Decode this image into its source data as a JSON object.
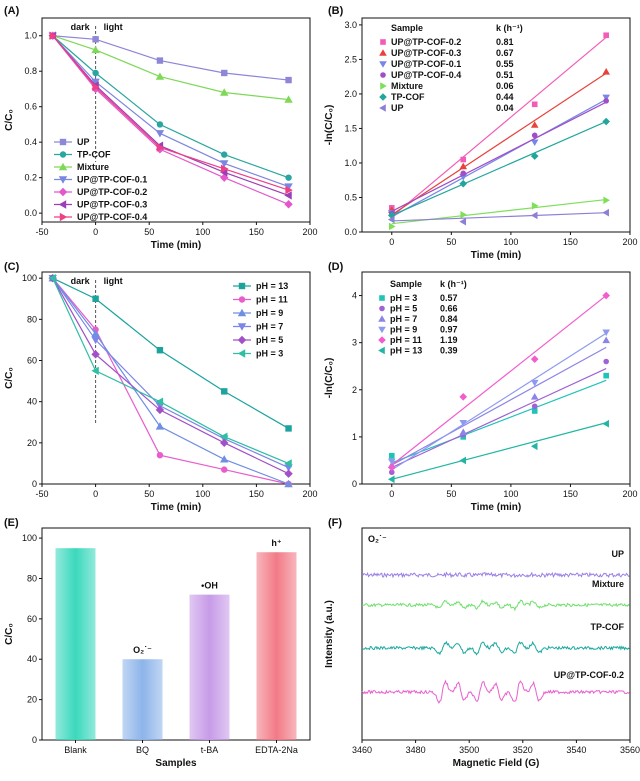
{
  "chart_data": [
    {
      "panel": "(A)",
      "type": "line",
      "xlabel": "Time (min)",
      "ylabel": "C/C₀",
      "xlim": [
        -50,
        200
      ],
      "ylim": [
        -0.05,
        1.1
      ],
      "xticks": [
        "-50",
        "0",
        "50",
        "100",
        "150",
        "200"
      ],
      "yticks": [
        "0.0",
        "0.2",
        "0.4",
        "0.6",
        "0.8",
        "1.0"
      ],
      "annotations": [
        "dark",
        "light"
      ],
      "x": [
        -40,
        0,
        60,
        120,
        180
      ],
      "series": [
        {
          "name": "UP",
          "color": "#8e86d6",
          "marker": "square",
          "values": [
            1.0,
            0.98,
            0.86,
            0.79,
            0.75
          ]
        },
        {
          "name": "TP-COF",
          "color": "#2aa6a0",
          "marker": "circle",
          "values": [
            1.0,
            0.79,
            0.5,
            0.33,
            0.2
          ]
        },
        {
          "name": "Mixture",
          "color": "#7ed957",
          "marker": "triangle-up",
          "values": [
            1.0,
            0.92,
            0.77,
            0.68,
            0.64
          ]
        },
        {
          "name": "UP@TP-COF-0.1",
          "color": "#7b86e0",
          "marker": "triangle-down",
          "values": [
            1.0,
            0.74,
            0.45,
            0.28,
            0.15
          ]
        },
        {
          "name": "UP@TP-COF-0.2",
          "color": "#e457cc",
          "marker": "diamond",
          "values": [
            1.0,
            0.7,
            0.36,
            0.2,
            0.05
          ]
        },
        {
          "name": "UP@TP-COF-0.3",
          "color": "#9c3fb6",
          "marker": "triangle-left",
          "values": [
            1.0,
            0.72,
            0.38,
            0.23,
            0.1
          ]
        },
        {
          "name": "UP@TP-COF-0.4",
          "color": "#ee3f87",
          "marker": "triangle-right",
          "values": [
            1.0,
            0.71,
            0.37,
            0.25,
            0.13
          ]
        }
      ]
    },
    {
      "panel": "(B)",
      "type": "scatter",
      "xlabel": "Time (min)",
      "ylabel": "-ln(C/C₀)",
      "xlim": [
        -25,
        200
      ],
      "ylim": [
        0.0,
        3.1
      ],
      "xticks": [
        "0",
        "50",
        "100",
        "150",
        "200"
      ],
      "yticks": [
        "0.0",
        "0.5",
        "1.0",
        "1.5",
        "2.0",
        "2.5",
        "3.0"
      ],
      "legend_header": [
        "Sample",
        "k (h⁻¹)"
      ],
      "x": [
        0,
        60,
        120,
        180
      ],
      "series": [
        {
          "name": "UP@TP-COF-0.2",
          "k": "0.81",
          "color": "#f25cb8",
          "marker": "square",
          "values": [
            0.35,
            1.05,
            1.85,
            2.85
          ],
          "fit": [
            0.22,
            2.82
          ]
        },
        {
          "name": "UP@TP-COF-0.3",
          "k": "0.67",
          "color": "#e8423c",
          "marker": "triangle-up",
          "values": [
            0.32,
            0.95,
            1.55,
            2.32
          ],
          "fit": [
            0.25,
            2.3
          ]
        },
        {
          "name": "UP@TP-COF-0.1",
          "k": "0.55",
          "color": "#7887e6",
          "marker": "triangle-down",
          "values": [
            0.28,
            0.8,
            1.3,
            1.95
          ],
          "fit": [
            0.22,
            1.92
          ]
        },
        {
          "name": "UP@TP-COF-0.4",
          "k": "0.51",
          "color": "#a04dc6",
          "marker": "circle",
          "values": [
            0.27,
            0.85,
            1.4,
            1.9
          ],
          "fit": [
            0.3,
            1.88
          ]
        },
        {
          "name": "Mixture",
          "k": "0.06",
          "color": "#7ee05a",
          "marker": "triangle-right",
          "values": [
            0.08,
            0.25,
            0.38,
            0.46
          ],
          "fit": [
            0.12,
            0.47
          ]
        },
        {
          "name": "TP-COF",
          "k": "0.44",
          "color": "#22a69c",
          "marker": "diamond",
          "values": [
            0.24,
            0.7,
            1.1,
            1.6
          ],
          "fit": [
            0.24,
            1.6
          ]
        },
        {
          "name": "UP",
          "k": "0.04",
          "color": "#8d7fd8",
          "marker": "triangle-left",
          "values": [
            0.18,
            0.15,
            0.24,
            0.28
          ],
          "fit": [
            0.16,
            0.28
          ]
        }
      ]
    },
    {
      "panel": "(C)",
      "type": "line",
      "xlabel": "Time (min)",
      "ylabel": "C/C₀",
      "xlim": [
        -50,
        200
      ],
      "ylim": [
        0,
        103
      ],
      "xticks": [
        "-50",
        "0",
        "50",
        "100",
        "150",
        "200"
      ],
      "yticks": [
        "0",
        "20",
        "40",
        "60",
        "80",
        "100"
      ],
      "annotations": [
        "dark",
        "light"
      ],
      "x": [
        -40,
        0,
        60,
        120,
        180
      ],
      "series": [
        {
          "name": "pH = 13",
          "color": "#1ba39c",
          "marker": "square",
          "values": [
            100,
            90,
            65,
            45,
            27
          ]
        },
        {
          "name": "pH = 11",
          "color": "#e95ccc",
          "marker": "circle",
          "values": [
            100,
            75,
            14,
            7,
            0
          ]
        },
        {
          "name": "pH = 9",
          "color": "#6f8fe3",
          "marker": "triangle-up",
          "values": [
            100,
            73,
            28,
            12,
            0
          ]
        },
        {
          "name": "pH = 7",
          "color": "#7b86e8",
          "marker": "triangle-down",
          "values": [
            100,
            70,
            38,
            22,
            8
          ]
        },
        {
          "name": "pH = 5",
          "color": "#a24fc9",
          "marker": "diamond",
          "values": [
            100,
            63,
            36,
            20,
            5
          ]
        },
        {
          "name": "pH = 3",
          "color": "#2fbfa3",
          "marker": "triangle-left",
          "values": [
            100,
            55,
            40,
            23,
            10
          ]
        }
      ]
    },
    {
      "panel": "(D)",
      "type": "scatter",
      "xlabel": "Time (min)",
      "ylabel": "-ln(C/C₀)",
      "xlim": [
        -25,
        200
      ],
      "ylim": [
        0,
        4.5
      ],
      "xticks": [
        "0",
        "50",
        "100",
        "150",
        "200"
      ],
      "yticks": [
        "0",
        "1",
        "2",
        "3",
        "4"
      ],
      "legend_header": [
        "Sample",
        "k (h⁻¹)"
      ],
      "x": [
        0,
        60,
        120,
        180
      ],
      "series": [
        {
          "name": "pH = 3",
          "k": "0.57",
          "color": "#1fc3b8",
          "marker": "square",
          "values": [
            0.6,
            1.0,
            1.55,
            2.3
          ],
          "fit": [
            0.45,
            2.2
          ]
        },
        {
          "name": "pH = 5",
          "k": "0.66",
          "color": "#a062d4",
          "marker": "circle",
          "values": [
            0.25,
            1.05,
            1.65,
            2.6
          ],
          "fit": [
            0.35,
            2.45
          ]
        },
        {
          "name": "pH = 7",
          "k": "0.84",
          "color": "#8c84e6",
          "marker": "triangle-up",
          "values": [
            0.4,
            1.1,
            1.85,
            3.05
          ],
          "fit": [
            0.4,
            2.9
          ]
        },
        {
          "name": "pH = 9",
          "k": "0.97",
          "color": "#8c9bee",
          "marker": "triangle-down",
          "values": [
            0.48,
            1.3,
            2.15,
            3.22
          ],
          "fit": [
            0.3,
            3.2
          ]
        },
        {
          "name": "pH = 11",
          "k": "1.19",
          "color": "#f25ccd",
          "marker": "diamond",
          "values": [
            0.35,
            1.85,
            2.65,
            4.0
          ],
          "fit": [
            0.4,
            4.0
          ]
        },
        {
          "name": "pH = 13",
          "k": "0.39",
          "color": "#22b5a3",
          "marker": "triangle-left",
          "values": [
            0.1,
            0.5,
            0.8,
            1.28
          ],
          "fit": [
            0.1,
            1.3
          ]
        }
      ]
    },
    {
      "panel": "(E)",
      "type": "bar",
      "xlabel": "Samples",
      "ylabel": "C/C₀",
      "ylim": [
        0,
        105
      ],
      "yticks": [
        "0",
        "20",
        "40",
        "60",
        "80",
        "100"
      ],
      "categories": [
        "Blank",
        "BQ",
        "t-BA",
        "EDTA-2Na"
      ],
      "values": [
        95,
        40,
        72,
        93
      ],
      "bar_labels": [
        "",
        "O₂˙⁻",
        "•OH",
        "h⁺"
      ],
      "colors": [
        "#3ad8bd",
        "#8db4ea",
        "#c79be8",
        "#f27a86"
      ]
    },
    {
      "panel": "(F)",
      "type": "line",
      "xlabel": "Magnetic Field (G)",
      "ylabel": "Intensity (a.u.)",
      "xlim": [
        3460,
        3560
      ],
      "xticks": [
        "3460",
        "3480",
        "3500",
        "3520",
        "3540",
        "3560"
      ],
      "title_note": "O₂˙⁻",
      "series": [
        {
          "name": "UP",
          "color": "#9b7fe6",
          "offset": 3,
          "amp": 0.05
        },
        {
          "name": "Mixture",
          "color": "#6ee06a",
          "offset": 2,
          "amp": 0.35
        },
        {
          "name": "TP-COF",
          "color": "#1ba8a0",
          "offset": 1,
          "amp": 0.55
        },
        {
          "name": "UP@TP-COF-0.2",
          "color": "#e85fd0",
          "offset": 0,
          "amp": 1.0
        }
      ]
    }
  ]
}
